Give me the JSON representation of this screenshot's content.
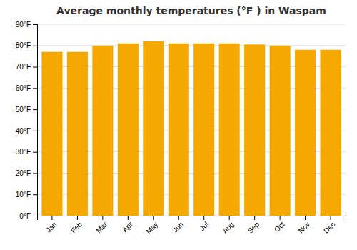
{
  "chart_data": {
    "type": "bar",
    "title": "Average monthly temperatures (°F ) in Waspam",
    "categories": [
      "Jan",
      "Feb",
      "Mar",
      "Apr",
      "May",
      "Jun",
      "Jul",
      "Aug",
      "Sep",
      "Oct",
      "Nov",
      "Dec"
    ],
    "values": [
      77,
      77,
      80,
      81,
      82,
      81,
      81,
      81,
      80.5,
      80,
      78,
      78
    ],
    "color": "#F5A800",
    "ylim": [
      0,
      90
    ],
    "yticks": [
      {
        "value": 0,
        "label": "0°F"
      },
      {
        "value": 10,
        "label": "10°F"
      },
      {
        "value": 20,
        "label": "20°F"
      },
      {
        "value": 30,
        "label": "30°F"
      },
      {
        "value": 40,
        "label": "40°F"
      },
      {
        "value": 50,
        "label": "50°F"
      },
      {
        "value": 60,
        "label": "60°F"
      },
      {
        "value": 70,
        "label": "70°F"
      },
      {
        "value": 80,
        "label": "80°F"
      },
      {
        "value": 90,
        "label": "90°F"
      }
    ],
    "grid": true
  }
}
